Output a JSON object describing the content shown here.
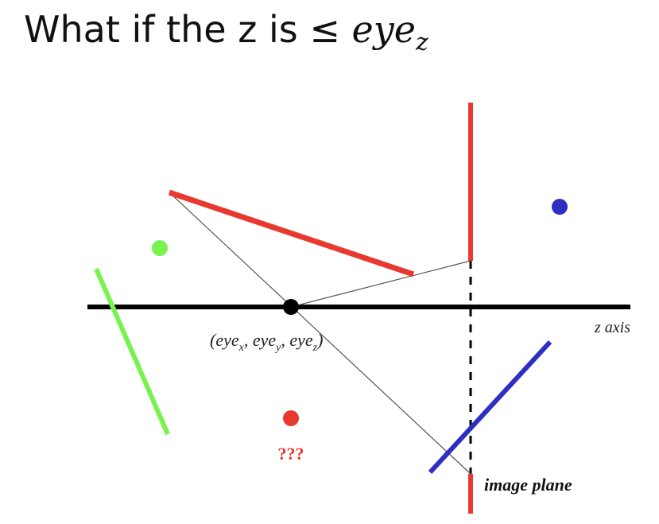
{
  "title": {
    "prefix": "What if the z is ≤ ",
    "math_base": "eye",
    "math_sub": "z"
  },
  "labels": {
    "z_axis": "z axis",
    "eye_point": "(eye",
    "eye_sub_x": "x",
    "eye_sep1": ", eye",
    "eye_sub_y": "y",
    "eye_sep2": ", eye",
    "eye_sub_z": "z",
    "eye_close": ")",
    "unknown": "???",
    "image_plane": "image plane"
  },
  "colors": {
    "red": "#e8392f",
    "green": "#77f24f",
    "blue": "#2e2fc2",
    "black": "#000000",
    "ray": "#555555"
  }
}
